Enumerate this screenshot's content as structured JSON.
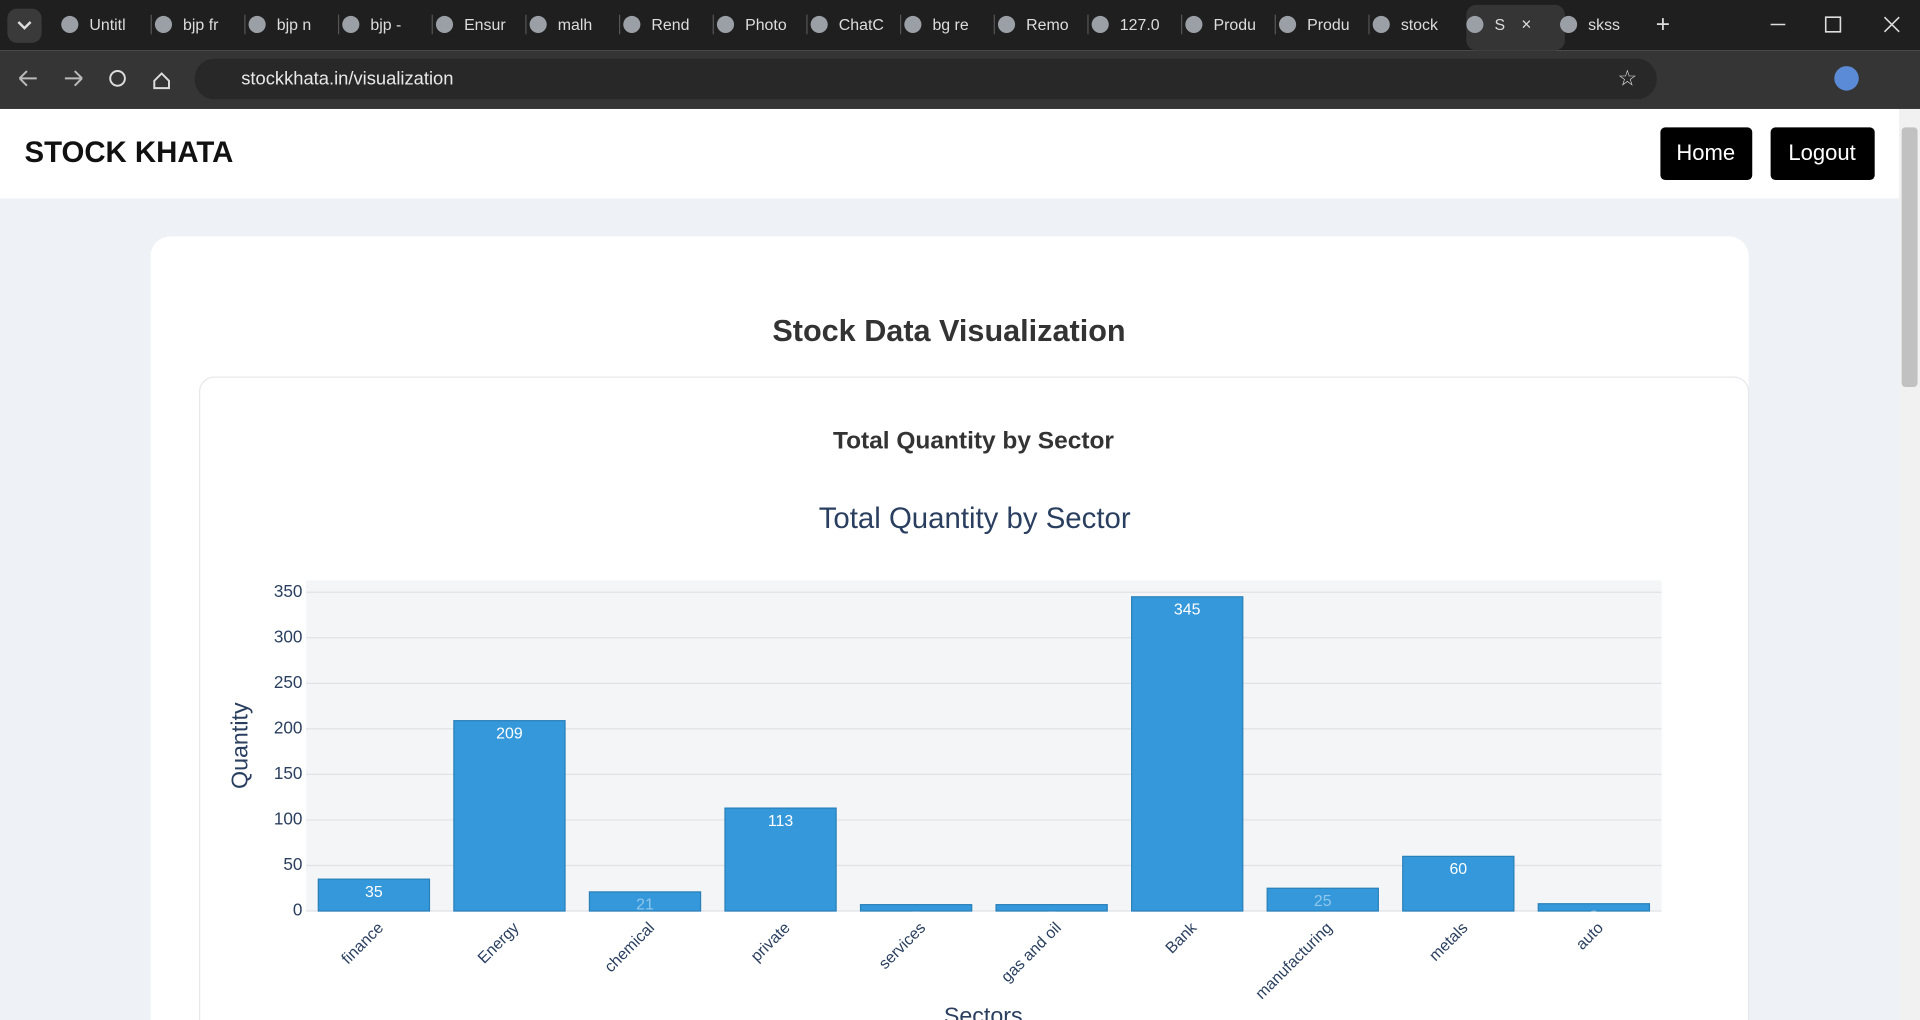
{
  "browser": {
    "tabs": [
      "Untitl",
      "bjp fr",
      "bjp n",
      "bjp -",
      "Ensur",
      "malh",
      "Rend",
      "Photo",
      "ChatC",
      "bg re",
      "Remo",
      "127.0",
      "Produ",
      "Produ",
      "stock",
      "S",
      "skss"
    ],
    "url": "stockkhata.in/visualization"
  },
  "nav": {
    "brand": "STOCK KHATA",
    "buttons": [
      "Home",
      "Logout"
    ]
  },
  "page": {
    "title": "Stock Data Visualization",
    "card_title": "Total Quantity by Sector"
  },
  "chart_data": {
    "type": "bar",
    "title": "Total Quantity by Sector",
    "x_label": "Sectors",
    "y_label": "Quantity",
    "categories": [
      "finance",
      "Energy",
      "chemical",
      "private",
      "services",
      "gas and oil",
      "Bank",
      "manufacturing",
      "metals",
      "auto"
    ],
    "values": [
      35,
      209,
      21,
      113,
      7,
      7,
      345,
      25,
      60,
      8
    ],
    "color": "#3498db",
    "ylim": [
      0,
      363
    ],
    "yticks": [
      0,
      50,
      100,
      150,
      200,
      250,
      300,
      350
    ],
    "grid": true
  }
}
